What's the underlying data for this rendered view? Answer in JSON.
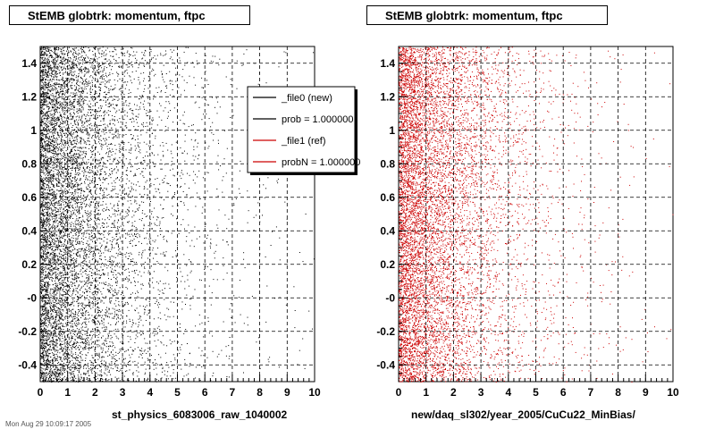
{
  "chart_data": [
    {
      "type": "scatter",
      "title": "StEMB globtrk: momentum, ftpc",
      "xlabel": "st_physics_6083006_raw_1040002",
      "ylabel": "",
      "xlim": [
        0,
        10
      ],
      "ylim": [
        -0.5,
        1.5
      ],
      "x_ticks": [
        "0",
        "1",
        "2",
        "3",
        "4",
        "5",
        "6",
        "7",
        "8",
        "9",
        "10"
      ],
      "y_ticks": [
        "-0.4",
        "-0.2",
        "-0",
        "0.2",
        "0.4",
        "0.6",
        "0.8",
        "1",
        "1.2",
        "1.4"
      ],
      "grid": true,
      "legend_position": "top-right",
      "series": [
        {
          "name": "_file0 (new)",
          "color": "#000000",
          "distribution": "dense near x=0, decaying with x, uniform in y"
        }
      ],
      "legend": [
        {
          "label": "_file0 (new)",
          "color": "#000000"
        },
        {
          "label": "prob = 1.000000",
          "color": "#000000"
        },
        {
          "label": "_file1 (ref)",
          "color": "#cc0000"
        },
        {
          "label": "probN = 1.000000",
          "color": "#cc0000"
        }
      ]
    },
    {
      "type": "scatter",
      "title": "StEMB globtrk: momentum, ftpc",
      "xlabel": "new/daq_sl302/year_2005/CuCu22_MinBias/",
      "ylabel": "",
      "xlim": [
        0,
        10
      ],
      "ylim": [
        -0.5,
        1.5
      ],
      "x_ticks": [
        "0",
        "1",
        "2",
        "3",
        "4",
        "5",
        "6",
        "7",
        "8",
        "9",
        "10"
      ],
      "y_ticks": [
        "-0.4",
        "-0.2",
        "-0",
        "0.2",
        "0.4",
        "0.6",
        "0.8",
        "1",
        "1.2",
        "1.4"
      ],
      "grid": true,
      "series": [
        {
          "name": "_file1 (ref)",
          "color": "#cc0000",
          "distribution": "dense near x=0, decaying with x, uniform in y"
        }
      ]
    }
  ],
  "footer": "Mon Aug 29 10:09:17 2005"
}
